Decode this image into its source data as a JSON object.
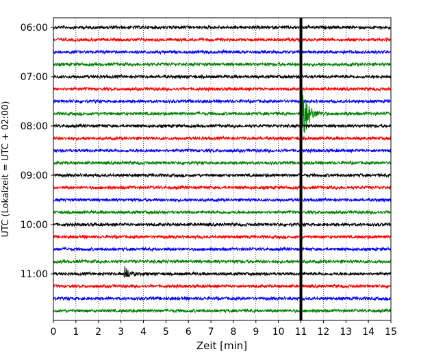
{
  "chart_data": {
    "type": "line",
    "title": "",
    "xlabel": "Zeit  [min]",
    "ylabel": "UTC (Lokalzeit = UTC + 02:00)",
    "xlim": [
      0,
      15
    ],
    "x_ticks": [
      0,
      1,
      2,
      3,
      4,
      5,
      6,
      7,
      8,
      9,
      10,
      11,
      12,
      13,
      14,
      15
    ],
    "y_tick_labels": [
      "06:00",
      "07:00",
      "08:00",
      "09:00",
      "10:00",
      "11:00"
    ],
    "grid": "vertical dotted",
    "trace_interval_min": 15,
    "start_time": "06:00",
    "trace_count": 24,
    "trace_colors": [
      "#000000",
      "#ff0000",
      "#0000ff",
      "#008000"
    ],
    "events": [
      {
        "trace_start": "07:45",
        "x_min": 11.0,
        "label": ""
      },
      {
        "trace_start": "11:00",
        "x_min": 3.2,
        "label": ""
      }
    ],
    "marker_line_x_min": 11.0,
    "marker_color": "#000000"
  }
}
